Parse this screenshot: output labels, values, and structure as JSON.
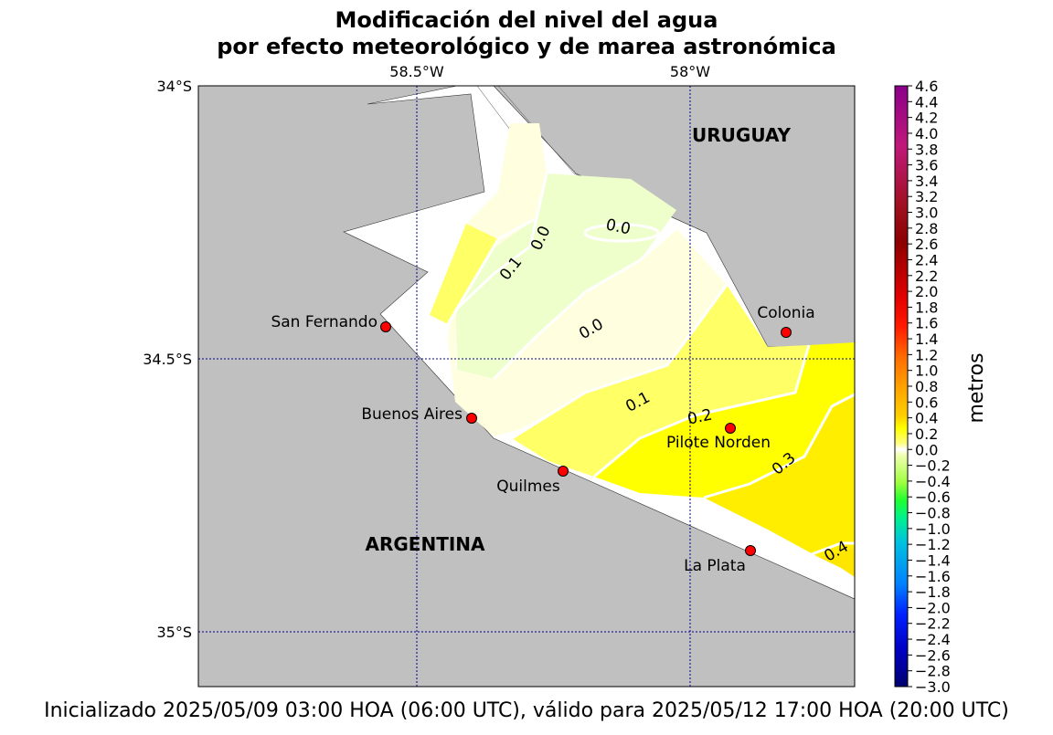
{
  "title_line1": "Modificación del nivel del agua",
  "title_line2": "por efecto meteorológico y de marea astronómica",
  "caption": "Inicializado 2025/05/09 03:00 HOA (06:00 UTC), válido para 2025/05/12 17:00 HOA (20:00 UTC)",
  "map": {
    "lon_labels": [
      "58.5°W",
      "58°W"
    ],
    "lat_labels": [
      "34°S",
      "34.5°S",
      "35°S"
    ],
    "region_labels": {
      "uruguay": "URUGUAY",
      "argentina": "ARGENTINA"
    },
    "cities": [
      {
        "key": "san_fernando",
        "name": "San Fernando"
      },
      {
        "key": "colonia",
        "name": "Colonia"
      },
      {
        "key": "buenos_aires",
        "name": "Buenos Aires"
      },
      {
        "key": "pilote_norden",
        "name": "Pilote Norden"
      },
      {
        "key": "quilmes",
        "name": "Quilmes"
      },
      {
        "key": "la_plata",
        "name": "La Plata"
      }
    ],
    "contour_labels": [
      "0.0",
      "0.0",
      "0.1",
      "0.0",
      "0.1",
      "0.2",
      "0.3",
      "0.4"
    ],
    "colors": {
      "land": "#c0c0c0",
      "marker": "#ff0000",
      "gridline": "#00008b"
    }
  },
  "colorbar": {
    "label": "metros",
    "ticks": [
      "4.6",
      "4.4",
      "4.2",
      "4.0",
      "3.8",
      "3.6",
      "3.4",
      "3.2",
      "3.0",
      "2.8",
      "2.6",
      "2.4",
      "2.2",
      "2.0",
      "1.8",
      "1.6",
      "1.4",
      "1.2",
      "1.0",
      "0.8",
      "0.6",
      "0.4",
      "0.2",
      "0.0",
      "−0.2",
      "−0.4",
      "−0.6",
      "−0.8",
      "−1.0",
      "−1.2",
      "−1.4",
      "−1.6",
      "−1.8",
      "−2.0",
      "−2.2",
      "−2.4",
      "−2.6",
      "−2.8",
      "−3.0"
    ]
  }
}
